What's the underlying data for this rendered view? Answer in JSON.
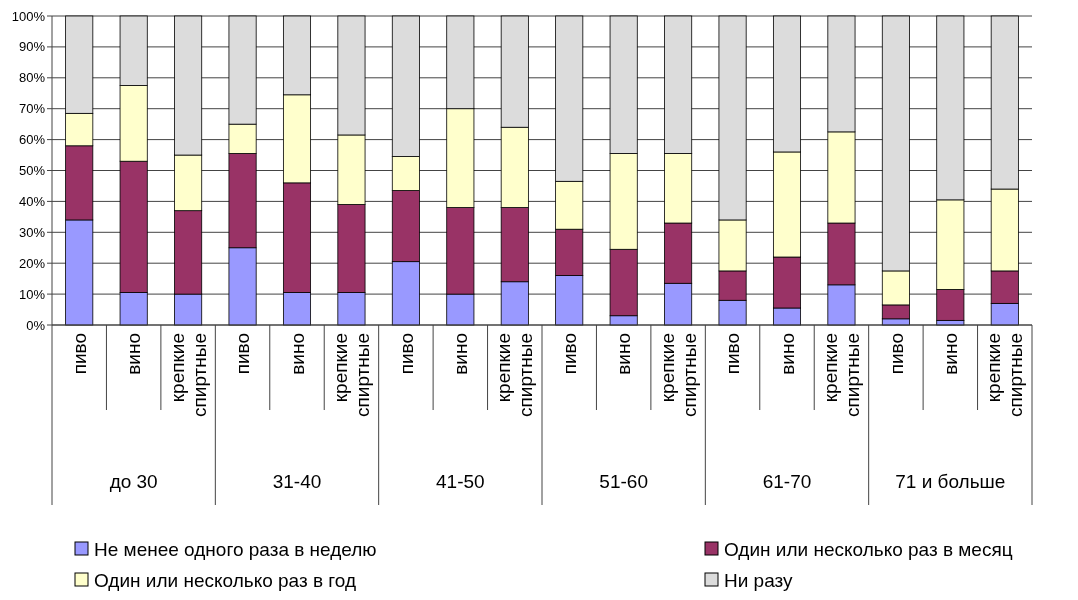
{
  "chart_data": {
    "type": "bar",
    "stacked": true,
    "categories": [
      "пиво",
      "вино",
      "крепкие спиртные",
      "пиво",
      "вино",
      "крепкие спиртные",
      "пиво",
      "вино",
      "крепкие спиртные",
      "пиво",
      "вино",
      "крепкие спиртные",
      "пиво",
      "вино",
      "крепкие спиртные",
      "пиво",
      "вино",
      "крепкие спиртные"
    ],
    "annotations": [
      "до 30",
      "31-40",
      "41-50",
      "51-60",
      "61-70",
      "71 и больше"
    ],
    "series": [
      {
        "name": "Не менее одного раза в неделю",
        "color": "#9999ff",
        "values": [
          34,
          10.5,
          10,
          25,
          10.5,
          10.5,
          20.5,
          10,
          14,
          16,
          3,
          13.5,
          8,
          5.5,
          13,
          2,
          1.5,
          7
        ]
      },
      {
        "name": "Один или несколько раз в месяц",
        "color": "#993366",
        "values": [
          24,
          42.5,
          27,
          30.5,
          35.5,
          28.5,
          23,
          28,
          24,
          15,
          21.5,
          19.5,
          9.5,
          16.5,
          20,
          4.5,
          10,
          10.5
        ]
      },
      {
        "name": "Один или несколько раз в год",
        "color": "#ffffcc",
        "values": [
          10.5,
          24.5,
          18,
          9.5,
          28.5,
          22.5,
          11,
          32,
          26,
          15.5,
          31,
          22.5,
          16.5,
          34,
          29.5,
          11,
          29,
          26.5
        ]
      },
      {
        "name": "Ни разу",
        "color": "#dcdcdc",
        "values": [
          31.5,
          22.5,
          45,
          35,
          25.5,
          38.5,
          45.5,
          30,
          36,
          53.5,
          44.5,
          44.5,
          66,
          44,
          37.5,
          82.5,
          59.5,
          56
        ]
      }
    ],
    "ylim": [
      0,
      100
    ],
    "yticks": [
      {
        "value": 0,
        "label": "0%"
      },
      {
        "value": 10,
        "label": "10%"
      },
      {
        "value": 20,
        "label": "20%"
      },
      {
        "value": 30,
        "label": "30%"
      },
      {
        "value": 40,
        "label": "40%"
      },
      {
        "value": 50,
        "label": "50%"
      },
      {
        "value": 60,
        "label": "60%"
      },
      {
        "value": 70,
        "label": "70%"
      },
      {
        "value": 80,
        "label": "80%"
      },
      {
        "value": 90,
        "label": "90%"
      },
      {
        "value": 100,
        "label": "100%"
      }
    ],
    "grid": "y",
    "legend": "bottom"
  }
}
